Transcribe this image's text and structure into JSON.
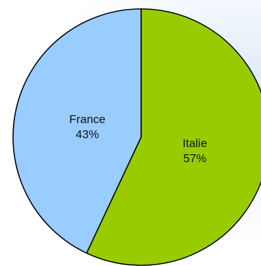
{
  "chart_data": {
    "type": "pie",
    "title": "",
    "slices": [
      {
        "label": "Italie",
        "value": 57,
        "percent_label": "57%",
        "color": "#99cc00"
      },
      {
        "label": "France",
        "value": 43,
        "percent_label": "43%",
        "color": "#99ccff"
      }
    ],
    "start_angle_deg": 0,
    "direction": "clockwise",
    "legend": "none"
  }
}
